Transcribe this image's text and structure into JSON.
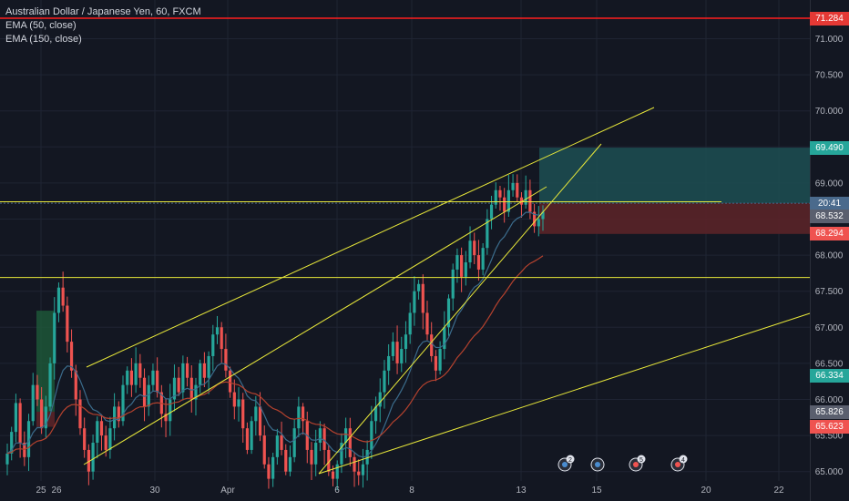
{
  "legend": {
    "title": "Australian Dollar / Japanese Yen, 60, FXCM",
    "ema50": "EMA (50, close)",
    "ema150": "EMA (150, close)"
  },
  "colors": {
    "background": "#131722",
    "grid": "#1f2433",
    "up": "#26a69a",
    "down": "#ef5350",
    "ema50": "#3b6c8c",
    "ema150": "#b5422e",
    "trendline": "#e8e83a",
    "resistance": "#ff1e1e",
    "profit_zone": "#1d4f52",
    "loss_zone": "#5a2328"
  },
  "chart_data": {
    "type": "candlestick",
    "title": "Australian Dollar / Japanese Yen, 60, FXCM",
    "y_ticks": [
      "71.000",
      "70.500",
      "70.000",
      "69.500",
      "69.000",
      "68.500",
      "68.000",
      "67.500",
      "67.000",
      "66.500",
      "66.000",
      "65.500",
      "65.000"
    ],
    "x_ticks": [
      "25",
      "26",
      "30",
      "Apr",
      "6",
      "8",
      "13",
      "15",
      "20",
      "22"
    ],
    "ylim": [
      64.8,
      71.55
    ],
    "price_tags": [
      {
        "label": "71.284",
        "value": 71.284,
        "color": "#e53935"
      },
      {
        "label": "69.490",
        "value": 69.49,
        "color": "#26a69a"
      },
      {
        "label": "20:41",
        "value": 68.72,
        "color": "#4a6a8c"
      },
      {
        "label": "68.532",
        "value": 68.532,
        "color": "#5a5f6e"
      },
      {
        "label": "68.294",
        "value": 68.294,
        "color": "#ef5350"
      },
      {
        "label": "66.334",
        "value": 66.334,
        "color": "#26a69a"
      },
      {
        "label": "65.826",
        "value": 65.826,
        "color": "#5a5f6e"
      },
      {
        "label": "65.623",
        "value": 65.623,
        "color": "#ef5350"
      }
    ],
    "horizontal_lines": [
      {
        "value": 71.284,
        "kind": "resistance"
      },
      {
        "value": 68.74,
        "kind": "trend"
      },
      {
        "value": 67.69,
        "kind": "trend"
      }
    ],
    "position": {
      "entry": 68.72,
      "target": 69.49,
      "stop": 68.294
    },
    "candles_close": [
      65.25,
      65.55,
      65.95,
      65.4,
      65.2,
      65.7,
      66.2,
      66.0,
      65.6,
      65.9,
      66.5,
      67.2,
      67.55,
      67.3,
      66.8,
      66.4,
      66.0,
      65.6,
      65.3,
      65.0,
      65.4,
      65.7,
      65.5,
      65.3,
      65.6,
      65.9,
      65.7,
      66.2,
      66.4,
      66.2,
      66.5,
      66.3,
      65.9,
      66.2,
      66.4,
      66.1,
      65.8,
      65.7,
      66.0,
      66.3,
      66.1,
      66.5,
      66.3,
      66.0,
      66.2,
      66.5,
      66.3,
      66.6,
      66.9,
      67.0,
      66.7,
      66.4,
      66.1,
      65.9,
      66.0,
      65.6,
      65.3,
      65.7,
      65.9,
      65.5,
      65.1,
      64.9,
      65.2,
      65.5,
      65.3,
      65.0,
      65.2,
      65.6,
      65.9,
      65.7,
      65.3,
      65.1,
      65.4,
      65.6,
      65.3,
      65.0,
      64.9,
      65.1,
      65.4,
      65.6,
      65.2,
      65.0,
      64.95,
      65.1,
      65.3,
      65.7,
      65.9,
      66.1,
      66.4,
      66.6,
      66.8,
      66.5,
      66.7,
      66.9,
      67.2,
      67.5,
      67.6,
      67.2,
      66.9,
      66.6,
      66.4,
      66.7,
      67.0,
      67.4,
      67.8,
      68.0,
      67.7,
      67.9,
      68.2,
      68.0,
      67.8,
      68.1,
      68.5,
      68.7,
      68.9,
      68.8,
      68.6,
      68.9,
      69.0,
      68.8,
      68.7,
      68.9,
      68.6,
      68.4,
      68.5,
      68.6
    ]
  },
  "bottom_icons": [
    {
      "name": "event-icon-1",
      "badge": "2"
    },
    {
      "name": "event-icon-2",
      "badge": ""
    },
    {
      "name": "event-icon-3",
      "badge": "5"
    },
    {
      "name": "event-icon-4",
      "badge": "4"
    }
  ]
}
